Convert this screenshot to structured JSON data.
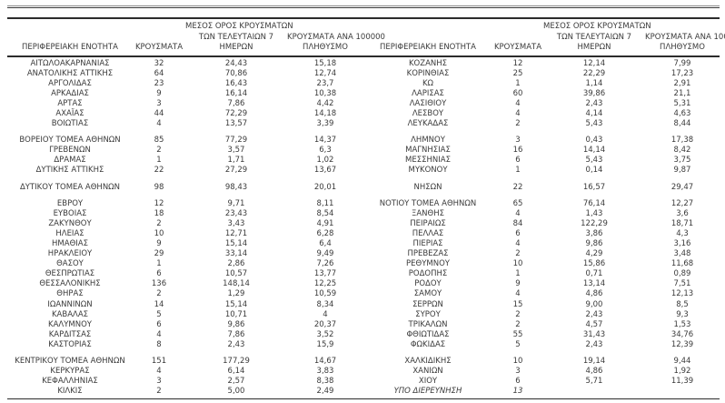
{
  "page": {
    "background_color": "#ffffff",
    "text_color": "#3a3a3a",
    "rule_color": "#2c2c2c"
  },
  "headers": {
    "region": "ΠΕΡΙΦΕΡΕΙΑΚΗ ΕΝΟΤΗΤΑ",
    "cases": "ΚΡΟΥΣΜΑΤΑ",
    "avg7_line1": "ΜΕΣΟΣ ΟΡΟΣ ΚΡΟΥΣΜΑΤΩΝ",
    "avg7_line2": "ΤΩΝ ΤΕΛΕΥΤΑΙΩΝ 7",
    "avg7_line3": "ΗΜΕΡΩΝ",
    "per100k_line1": "ΚΡΟΥΣΜΑΤΑ ΑΝΑ 100000",
    "per100k_line2": "ΠΛΗΘΥΣΜΟ"
  },
  "italic_regions": [
    "ΥΠΟ ΔΙΕΡΕΥΝΗΣΗ"
  ],
  "sections": [
    {
      "left": [
        [
          "ΑΙΤΩΛΟΑΚΑΡΝΑΝΙΑΣ",
          "32",
          "24,43",
          "15,18"
        ],
        [
          "ΑΝΑΤΟΛΙΚΗΣ ΑΤΤΙΚΗΣ",
          "64",
          "70,86",
          "12,74"
        ],
        [
          "ΑΡΓΟΛΙΔΑΣ",
          "23",
          "16,43",
          "23,7"
        ],
        [
          "ΑΡΚΑΔΙΑΣ",
          "9",
          "16,14",
          "10,38"
        ],
        [
          "ΑΡΤΑΣ",
          "3",
          "7,86",
          "4,42"
        ],
        [
          "ΑΧΑΪΑΣ",
          "44",
          "72,29",
          "14,18"
        ],
        [
          "ΒΟΙΩΤΙΑΣ",
          "4",
          "13,57",
          "3,39"
        ]
      ],
      "right": [
        [
          "ΚΟΖΑΝΗΣ",
          "12",
          "12,14",
          "7,99"
        ],
        [
          "ΚΟΡΙΝΘΙΑΣ",
          "25",
          "22,29",
          "17,23"
        ],
        [
          "ΚΩ",
          "1",
          "1,14",
          "2,91"
        ],
        [
          "ΛΑΡΙΣΑΣ",
          "60",
          "39,86",
          "21,1"
        ],
        [
          "ΛΑΣΙΘΙΟΥ",
          "4",
          "2,43",
          "5,31"
        ],
        [
          "ΛΕΣΒΟΥ",
          "4",
          "4,14",
          "4,63"
        ],
        [
          "ΛΕΥΚΑΔΑΣ",
          "2",
          "5,43",
          "8,44"
        ]
      ]
    },
    {
      "left": [
        [
          "ΒΟΡΕΙΟΥ ΤΟΜΕΑ ΑΘΗΝΩΝ",
          "85",
          "77,29",
          "14,37"
        ],
        [
          "ΓΡΕΒΕΝΩΝ",
          "2",
          "3,57",
          "6,3"
        ],
        [
          "ΔΡΑΜΑΣ",
          "1",
          "1,71",
          "1,02"
        ],
        [
          "ΔΥΤΙΚΗΣ ΑΤΤΙΚΗΣ",
          "22",
          "27,29",
          "13,67"
        ]
      ],
      "right": [
        [
          "ΛΗΜΝΟΥ",
          "3",
          "0,43",
          "17,38"
        ],
        [
          "ΜΑΓΝΗΣΙΑΣ",
          "16",
          "14,14",
          "8,42"
        ],
        [
          "ΜΕΣΣΗΝΙΑΣ",
          "6",
          "5,43",
          "3,75"
        ],
        [
          "ΜΥΚΟΝΟΥ",
          "1",
          "0,14",
          "9,87"
        ]
      ]
    },
    {
      "left": [
        [
          "ΔΥΤΙΚΟΥ ΤΟΜΕΑ ΑΘΗΝΩΝ",
          "98",
          "98,43",
          "20,01"
        ]
      ],
      "right": [
        [
          "ΝΗΣΩΝ",
          "22",
          "16,57",
          "29,47"
        ]
      ]
    },
    {
      "left": [
        [
          "ΕΒΡΟΥ",
          "12",
          "9,71",
          "8,11"
        ],
        [
          "ΕΥΒΟΙΑΣ",
          "18",
          "23,43",
          "8,54"
        ],
        [
          "ΖΑΚΥΝΘΟΥ",
          "2",
          "3,43",
          "4,91"
        ],
        [
          "ΗΛΕΙΑΣ",
          "10",
          "12,71",
          "6,28"
        ],
        [
          "ΗΜΑΘΙΑΣ",
          "9",
          "15,14",
          "6,4"
        ],
        [
          "ΗΡΑΚΛΕΙΟΥ",
          "29",
          "33,14",
          "9,49"
        ],
        [
          "ΘΑΣΟΥ",
          "1",
          "2,86",
          "7,26"
        ],
        [
          "ΘΕΣΠΡΩΤΙΑΣ",
          "6",
          "10,57",
          "13,77"
        ],
        [
          "ΘΕΣΣΑΛΟΝΙΚΗΣ",
          "136",
          "148,14",
          "12,25"
        ],
        [
          "ΘΗΡΑΣ",
          "2",
          "1,29",
          "10,59"
        ],
        [
          "ΙΩΑΝΝΙΝΩΝ",
          "14",
          "15,14",
          "8,34"
        ],
        [
          "ΚΑΒΑΛΑΣ",
          "5",
          "10,71",
          "4"
        ],
        [
          "ΚΑΛΥΜΝΟΥ",
          "6",
          "9,86",
          "20,37"
        ],
        [
          "ΚΑΡΔΙΤΣΑΣ",
          "4",
          "7,86",
          "3,52"
        ],
        [
          "ΚΑΣΤΟΡΙΑΣ",
          "8",
          "2,43",
          "15,9"
        ]
      ],
      "right": [
        [
          "ΝΟΤΙΟΥ ΤΟΜΕΑ ΑΘΗΝΩΝ",
          "65",
          "76,14",
          "12,27"
        ],
        [
          "ΞΑΝΘΗΣ",
          "4",
          "1,43",
          "3,6"
        ],
        [
          "ΠΕΙΡΑΙΩΣ",
          "84",
          "122,29",
          "18,71"
        ],
        [
          "ΠΕΛΛΑΣ",
          "6",
          "3,86",
          "4,3"
        ],
        [
          "ΠΙΕΡΙΑΣ",
          "4",
          "9,86",
          "3,16"
        ],
        [
          "ΠΡΕΒΕΖΑΣ",
          "2",
          "4,29",
          "3,48"
        ],
        [
          "ΡΕΘΥΜΝΟΥ",
          "10",
          "15,86",
          "11,68"
        ],
        [
          "ΡΟΔΟΠΗΣ",
          "1",
          "0,71",
          "0,89"
        ],
        [
          "ΡΟΔΟΥ",
          "9",
          "13,14",
          "7,51"
        ],
        [
          "ΣΑΜΟΥ",
          "4",
          "4,86",
          "12,13"
        ],
        [
          "ΣΕΡΡΩΝ",
          "15",
          "9,00",
          "8,5"
        ],
        [
          "ΣΥΡΟΥ",
          "2",
          "2,43",
          "9,3"
        ],
        [
          "ΤΡΙΚΑΛΩΝ",
          "2",
          "4,57",
          "1,53"
        ],
        [
          "ΦΘΙΩΤΙΔΑΣ",
          "55",
          "31,43",
          "34,76"
        ],
        [
          "ΦΩΚΙΔΑΣ",
          "5",
          "2,43",
          "12,39"
        ]
      ]
    },
    {
      "left": [
        [
          "ΚΕΝΤΡΙΚΟΥ ΤΟΜΕΑ ΑΘΗΝΩΝ",
          "151",
          "177,29",
          "14,67"
        ],
        [
          "ΚΕΡΚΥΡΑΣ",
          "4",
          "6,14",
          "3,83"
        ],
        [
          "ΚΕΦΑΛΛΗΝΙΑΣ",
          "3",
          "2,57",
          "8,38"
        ],
        [
          "ΚΙΛΚΙΣ",
          "2",
          "5,00",
          "2,49"
        ]
      ],
      "right": [
        [
          "ΧΑΛΚΙΔΙΚΗΣ",
          "10",
          "19,14",
          "9,44"
        ],
        [
          "ΧΑΝΙΩΝ",
          "3",
          "4,86",
          "1,92"
        ],
        [
          "ΧΙΟΥ",
          "6",
          "5,71",
          "11,39"
        ],
        [
          "ΥΠΟ ΔΙΕΡΕΥΝΗΣΗ",
          "13",
          "",
          ""
        ]
      ]
    }
  ]
}
